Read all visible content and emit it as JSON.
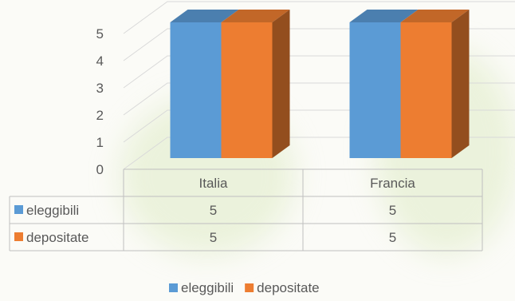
{
  "chart_data": {
    "type": "bar",
    "style": "3d-clustered-column-with-data-table",
    "categories": [
      "Italia",
      "Francia"
    ],
    "series": [
      {
        "name": "eleggibili",
        "values": [
          5,
          5
        ],
        "color": "#5b9bd5"
      },
      {
        "name": "depositate",
        "values": [
          5,
          5
        ],
        "color": "#ed7d31"
      }
    ],
    "yticks": [
      0,
      1,
      2,
      3,
      4,
      5
    ],
    "ylim": [
      0,
      5
    ],
    "grid": true,
    "legend": "bottom"
  }
}
